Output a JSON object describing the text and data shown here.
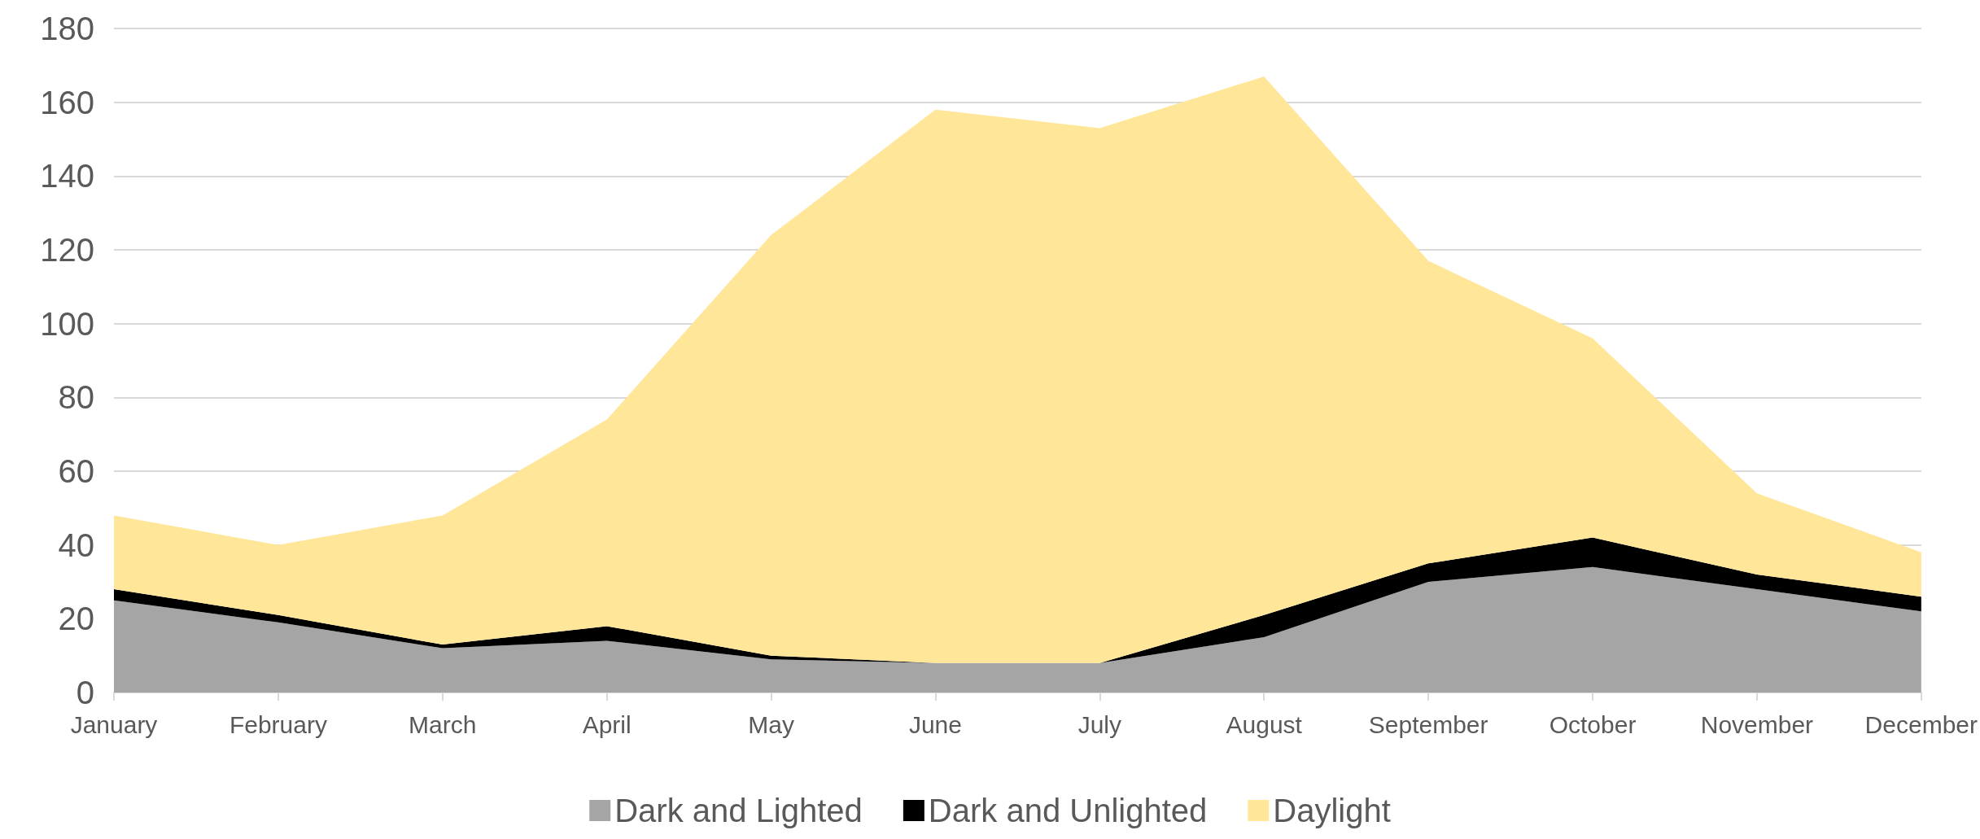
{
  "chart_data": {
    "type": "area",
    "stacked": true,
    "categories": [
      "January",
      "February",
      "March",
      "April",
      "May",
      "June",
      "July",
      "August",
      "September",
      "October",
      "November",
      "December"
    ],
    "series": [
      {
        "name": "Dark and Lighted",
        "color": "#a5a5a5",
        "values": [
          25,
          19,
          12,
          14,
          9,
          8,
          8,
          15,
          30,
          34,
          28,
          22
        ]
      },
      {
        "name": "Dark and Unlighted",
        "color": "#000000",
        "values": [
          3,
          2,
          1,
          4,
          1,
          0,
          0,
          6,
          5,
          8,
          4,
          4
        ]
      },
      {
        "name": "Daylight",
        "color": "#ffe699",
        "values": [
          20,
          19,
          35,
          56,
          114,
          150,
          145,
          146,
          82,
          54,
          22,
          12
        ]
      }
    ],
    "ylim": [
      0,
      180
    ],
    "yticks": [
      0,
      20,
      40,
      60,
      80,
      100,
      120,
      140,
      160,
      180
    ],
    "grid": "y",
    "legend": "bottom"
  }
}
